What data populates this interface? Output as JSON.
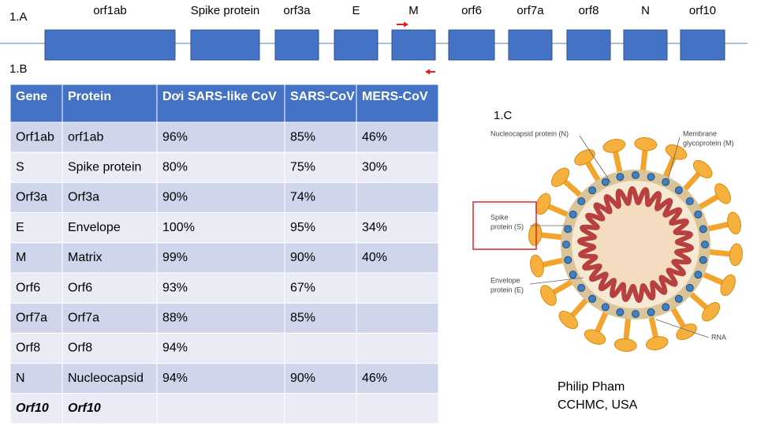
{
  "section_a": {
    "label": "1.A",
    "genes": [
      "orf1ab",
      "Spike protein",
      "orf3a",
      "E",
      "M",
      "orf6",
      "orf7a",
      "orf8",
      "N",
      "orf10"
    ]
  },
  "section_b": {
    "label": "1.B",
    "table": {
      "header": [
        "Gene",
        "Protein",
        "Dơi SARS-like CoV",
        "SARS-CoV",
        "MERS-CoV"
      ],
      "rows": [
        [
          "Orf1ab",
          "orf1ab",
          "96%",
          "85%",
          "46%"
        ],
        [
          "S",
          "Spike protein",
          "80%",
          "75%",
          "30%"
        ],
        [
          "Orf3a",
          "Orf3a",
          "90%",
          "74%",
          null
        ],
        [
          "E",
          "Envelope",
          "100%",
          "95%",
          "34%"
        ],
        [
          "M",
          "Matrix",
          "99%",
          "90%",
          "40%"
        ],
        [
          "Orf6",
          "Orf6",
          "93%",
          "67%",
          null
        ],
        [
          "Orf7a",
          "Orf7a",
          "88%",
          "85%",
          null
        ],
        [
          "Orf8",
          "Orf8",
          "94%",
          null,
          null
        ],
        [
          "N",
          "Nucleocapsid",
          "94%",
          "90%",
          "46%"
        ],
        [
          "Orf10",
          "Orf10",
          null,
          null,
          null
        ]
      ]
    }
  },
  "section_c": {
    "label": "1.C",
    "annotations": [
      {
        "lines": [
          "Nucleocapsid protein (N)"
        ]
      },
      {
        "lines": [
          "Membrane",
          "glycoprotein (M)"
        ]
      },
      {
        "lines": [
          "Spike",
          "protein (S)"
        ]
      },
      {
        "lines": [
          "Envelope",
          "protein (E)"
        ]
      },
      {
        "lines": [
          "RNA"
        ]
      }
    ]
  },
  "credit": {
    "name": "Philip Pham",
    "affiliation": "CCHMC, USA"
  }
}
